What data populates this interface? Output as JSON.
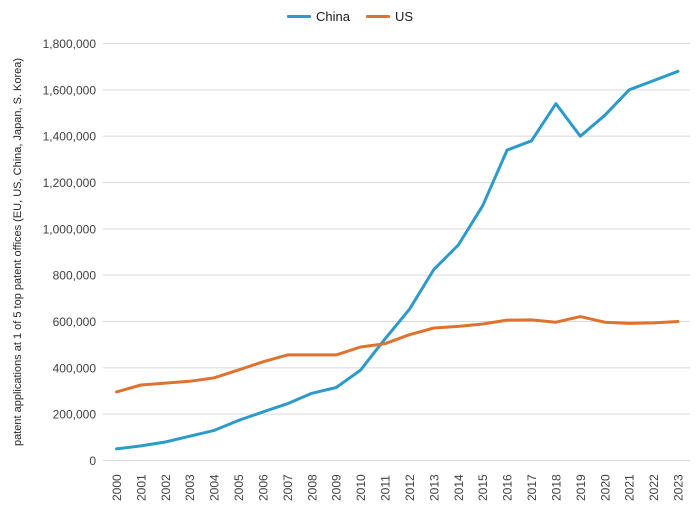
{
  "legend": {
    "items": [
      {
        "label": "China",
        "color": "#2E9AC9"
      },
      {
        "label": "US",
        "color": "#E0722F"
      }
    ]
  },
  "chart_data": {
    "type": "line",
    "title": "",
    "xlabel": "",
    "ylabel": "patent applications at 1 of 5 top patent offices (EU, US, China, Japan, S. Korea)",
    "x": [
      "2000",
      "2001",
      "2002",
      "2003",
      "2004",
      "2005",
      "2006",
      "2007",
      "2008",
      "2009",
      "2010",
      "2011",
      "2012",
      "2013",
      "2014",
      "2015",
      "2016",
      "2017",
      "2018",
      "2019",
      "2020",
      "2021",
      "2022",
      "2023"
    ],
    "series": [
      {
        "name": "China",
        "color": "#2E9AC9",
        "values": [
          50000,
          63000,
          80000,
          105000,
          130000,
          173000,
          210000,
          245000,
          290000,
          315000,
          390000,
          525000,
          653000,
          825000,
          930000,
          1100000,
          1340000,
          1380000,
          1540000,
          1400000,
          1490000,
          1600000,
          1640000,
          1680000
        ]
      },
      {
        "name": "US",
        "color": "#E0722F",
        "values": [
          296000,
          326000,
          334000,
          342000,
          357000,
          391000,
          426000,
          456000,
          456000,
          456000,
          490000,
          504000,
          543000,
          572000,
          579000,
          589000,
          606000,
          607000,
          597000,
          621000,
          597000,
          592000,
          594000,
          600000
        ]
      }
    ],
    "ylim": [
      0,
      1800000
    ],
    "ytick_step": 200000,
    "ytick_labels": [
      "0",
      "200,000",
      "400,000",
      "600,000",
      "800,000",
      "1,000,000",
      "1,200,000",
      "1,400,000",
      "1,600,000",
      "1,800,000"
    ],
    "grid": true,
    "legend_position": "top-center",
    "grid_color": "#d9d9d9",
    "axis_text_color": "#404040"
  }
}
